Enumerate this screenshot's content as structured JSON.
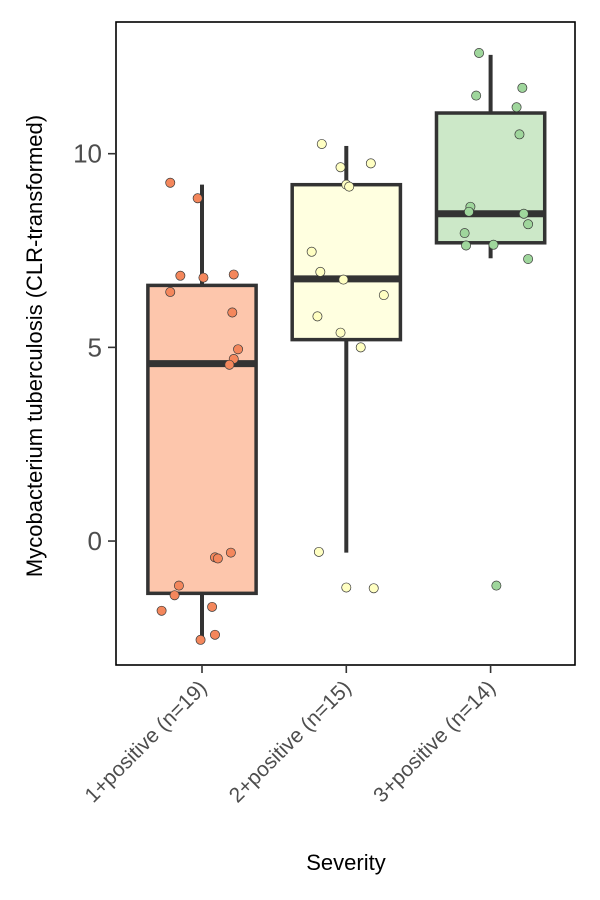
{
  "chart_data": {
    "type": "boxplot",
    "xlabel": "Severity",
    "ylabel": "Mycobacterium tuberculosis (CLR-transformed)",
    "ylim": [
      -3.2,
      13.4
    ],
    "yticks": [
      0,
      5,
      10
    ],
    "ytick_labels": [
      "0",
      "5",
      "10"
    ],
    "grid": false,
    "legend": "none",
    "categories": [
      "1+positive (n=19)",
      "2+positive (n=15)",
      "3+positive (n=14)"
    ],
    "boxes": [
      {
        "category": "1+positive (n=19)",
        "fill": "#FDC6AC",
        "point_color": "#F4875C",
        "q1": -1.35,
        "median": 4.58,
        "q3": 6.6,
        "whisker_low": -2.6,
        "whisker_high": 9.2,
        "points": [
          {
            "j": -0.22,
            "y": 9.25
          },
          {
            "j": -0.03,
            "y": 8.85
          },
          {
            "j": -0.15,
            "y": 6.85
          },
          {
            "j": 0.01,
            "y": 6.8
          },
          {
            "j": 0.22,
            "y": 6.88
          },
          {
            "j": -0.22,
            "y": 6.43
          },
          {
            "j": 0.21,
            "y": 5.9
          },
          {
            "j": 0.25,
            "y": 4.95
          },
          {
            "j": 0.22,
            "y": 4.7
          },
          {
            "j": 0.19,
            "y": 4.55
          },
          {
            "j": 0.2,
            "y": -0.3
          },
          {
            "j": 0.09,
            "y": -0.42
          },
          {
            "j": 0.11,
            "y": -0.45
          },
          {
            "j": -0.16,
            "y": -1.15
          },
          {
            "j": -0.28,
            "y": -1.8
          },
          {
            "j": 0.07,
            "y": -1.7
          },
          {
            "j": 0.09,
            "y": -2.42
          },
          {
            "j": -0.01,
            "y": -2.55
          },
          {
            "j": -0.19,
            "y": -1.4
          }
        ]
      },
      {
        "category": "2+positive (n=15)",
        "fill": "#FFFFE0",
        "point_color": "#FFFFC2",
        "q1": 5.2,
        "median": 6.77,
        "q3": 9.2,
        "whisker_low": -0.3,
        "whisker_high": 10.2,
        "points": [
          {
            "j": -0.17,
            "y": 10.25
          },
          {
            "j": -0.04,
            "y": 9.65
          },
          {
            "j": 0.17,
            "y": 9.75
          },
          {
            "j": 0.0,
            "y": 9.2
          },
          {
            "j": 0.02,
            "y": 9.15
          },
          {
            "j": -0.24,
            "y": 7.47
          },
          {
            "j": -0.18,
            "y": 6.95
          },
          {
            "j": -0.02,
            "y": 6.75
          },
          {
            "j": 0.26,
            "y": 6.35
          },
          {
            "j": -0.2,
            "y": 5.8
          },
          {
            "j": -0.04,
            "y": 5.38
          },
          {
            "j": 0.1,
            "y": 5.0
          },
          {
            "j": -0.19,
            "y": -0.28
          },
          {
            "j": 0.0,
            "y": -1.2
          },
          {
            "j": 0.19,
            "y": -1.22
          }
        ]
      },
      {
        "category": "3+positive (n=14)",
        "fill": "#CCE8C8",
        "point_color": "#9FD69C",
        "q1": 7.7,
        "median": 8.45,
        "q3": 11.05,
        "whisker_low": 7.3,
        "whisker_high": 12.55,
        "points": [
          {
            "j": -0.08,
            "y": 12.6
          },
          {
            "j": 0.22,
            "y": 11.7
          },
          {
            "j": -0.1,
            "y": 11.5
          },
          {
            "j": 0.18,
            "y": 11.2
          },
          {
            "j": 0.2,
            "y": 10.5
          },
          {
            "j": -0.14,
            "y": 8.63
          },
          {
            "j": -0.15,
            "y": 8.5
          },
          {
            "j": 0.23,
            "y": 8.45
          },
          {
            "j": 0.26,
            "y": 8.18
          },
          {
            "j": -0.18,
            "y": 7.95
          },
          {
            "j": -0.17,
            "y": 7.63
          },
          {
            "j": 0.02,
            "y": 7.65
          },
          {
            "j": 0.26,
            "y": 7.28
          },
          {
            "j": 0.04,
            "y": -1.15
          }
        ]
      }
    ]
  }
}
